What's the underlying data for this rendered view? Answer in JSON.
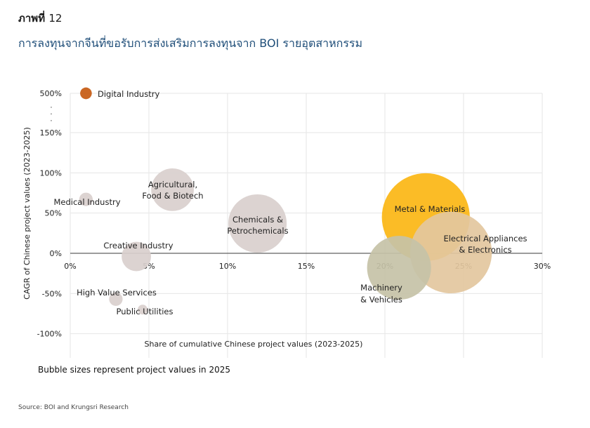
{
  "figure_label": {
    "prefix": "ภาพที่",
    "number": "12"
  },
  "title": "การลงทุนจากจีนที่ขอรับการส่งเสริมการลงทุนจาก BOI รายอุตสาหกรรม",
  "note": "Bubble sizes represent project values in 2025",
  "source": "Source: BOI and Krungsri Research",
  "chart_data": {
    "type": "scatter",
    "xlabel": "Share of cumulative Chinese project values (2023-2025)",
    "ylabel": "CAGR of Chinese project values (2023-2025)",
    "xlim": [
      0,
      30
    ],
    "ylim": [
      -100,
      150
    ],
    "axis_break": {
      "between": [
        150,
        500
      ],
      "dots": ".",
      "count": 3
    },
    "x_ticks": [
      0,
      5,
      10,
      15,
      20,
      25,
      30
    ],
    "x_tick_labels": [
      "0%",
      "5%",
      "10%",
      "15%",
      "20%",
      "25%",
      "30%"
    ],
    "y_ticks": [
      500,
      150,
      100,
      50,
      0,
      -50,
      -100
    ],
    "y_tick_labels": [
      "500%",
      "150%",
      "100%",
      "50%",
      "0%",
      "-50%",
      "-100%"
    ],
    "grid": true,
    "point_colors": {
      "default": "#d9cfcd",
      "Digital Industry": "#c55a11",
      "Metal & Materials": "#fbb614",
      "Electrical Appliances & Electronics": "#e3c79e",
      "Machinery & Vehicles": "#c5c2a7"
    },
    "points": [
      {
        "name": "Digital Industry",
        "label": "Digital Industry",
        "x": 1.0,
        "y": 500,
        "size": 0.03
      },
      {
        "name": "Medical Industry",
        "label": "Medical Industry",
        "x": 1.0,
        "y": 67,
        "size": 0.04
      },
      {
        "name": "Agricultural, Food & Biotech",
        "label": "Agricultural, Food & Biotech",
        "x": 6.5,
        "y": 79,
        "size": 0.4
      },
      {
        "name": "Chemicals & Petrochemicals",
        "label": "Chemicals & Petrochemicals",
        "x": 11.9,
        "y": 37,
        "size": 0.75
      },
      {
        "name": "Creative Industry",
        "label": "Creative Industry",
        "x": 4.2,
        "y": -4,
        "size": 0.19
      },
      {
        "name": "High Value Services",
        "label": "High Value Services",
        "x": 2.9,
        "y": -57,
        "size": 0.04
      },
      {
        "name": "Public Utilities",
        "label": "Public Utilities",
        "x": 4.6,
        "y": -70,
        "size": 0.02
      },
      {
        "name": "Electrical Appliances & Electronics",
        "label": "Electrical Appliances & Electronics",
        "x": 24.2,
        "y": 1,
        "size": 1.47
      },
      {
        "name": "Metal & Materials",
        "label": "Metal & Materials",
        "x": 22.6,
        "y": 45,
        "size": 1.7
      },
      {
        "name": "Machinery & Vehicles",
        "label": "Machinery & Vehicles",
        "x": 20.9,
        "y": -18,
        "size": 0.9
      }
    ]
  }
}
